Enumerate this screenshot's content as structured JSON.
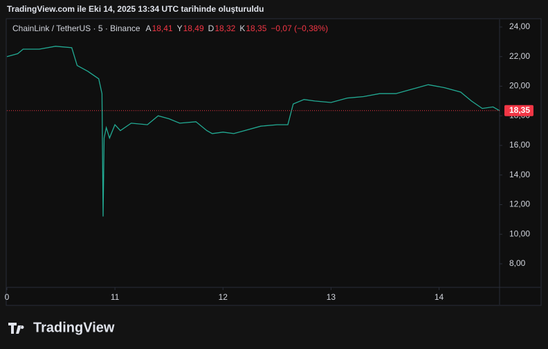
{
  "header": {
    "title": "TradingView.com ile Eki 14, 2025 13:34 UTC tarihinde oluşturuldu"
  },
  "chart_data": {
    "type": "line",
    "legend": {
      "symbol": "ChainLink / TetherUS · 5 · Binance",
      "ohlc_labels": [
        "A",
        "Y",
        "D",
        "K"
      ],
      "ohlc_values": [
        "18,41",
        "18,49",
        "18,32",
        "18,35"
      ],
      "change": "−0,07 (−0,38%)"
    },
    "x": [
      10.0,
      10.1,
      10.15,
      10.3,
      10.45,
      10.6,
      10.65,
      10.75,
      10.85,
      10.88,
      10.89,
      10.9,
      10.92,
      10.95,
      11.0,
      11.05,
      11.15,
      11.3,
      11.4,
      11.5,
      11.6,
      11.75,
      11.85,
      11.9,
      12.0,
      12.1,
      12.2,
      12.35,
      12.5,
      12.6,
      12.65,
      12.75,
      12.85,
      13.0,
      13.15,
      13.3,
      13.45,
      13.6,
      13.75,
      13.9,
      14.05,
      14.2,
      14.3,
      14.4,
      14.5,
      14.56
    ],
    "values": [
      22.0,
      22.2,
      22.5,
      22.5,
      22.7,
      22.6,
      21.4,
      21.0,
      20.5,
      19.5,
      11.2,
      16.5,
      17.2,
      16.5,
      17.4,
      17.0,
      17.5,
      17.4,
      18.0,
      17.8,
      17.5,
      17.6,
      17.0,
      16.8,
      16.9,
      16.8,
      17.0,
      17.3,
      17.4,
      17.4,
      18.8,
      19.1,
      19.0,
      18.9,
      19.2,
      19.3,
      19.5,
      19.5,
      19.8,
      20.1,
      19.9,
      19.6,
      19.0,
      18.5,
      18.6,
      18.35
    ],
    "color": "#22ab94",
    "last_price": {
      "value": 18.35,
      "label": "18,35"
    },
    "xlim": [
      10,
      14.56
    ],
    "xticks": [
      {
        "value": 10,
        "label": "0"
      },
      11,
      12,
      13,
      14
    ],
    "ylim": [
      6.41,
      24.42
    ],
    "yticks": [
      {
        "value": 8,
        "label": "8,00"
      },
      {
        "value": 10,
        "label": "10,00"
      },
      {
        "value": 12,
        "label": "12,00"
      },
      {
        "value": 14,
        "label": "14,00"
      },
      {
        "value": 16,
        "label": "16,00"
      },
      {
        "value": 18,
        "label": "18,00"
      },
      {
        "value": 20,
        "label": "20,00"
      },
      {
        "value": 22,
        "label": "22,00"
      },
      {
        "value": 24,
        "label": "24,00"
      }
    ]
  },
  "footer": {
    "logo": "TradingView"
  }
}
